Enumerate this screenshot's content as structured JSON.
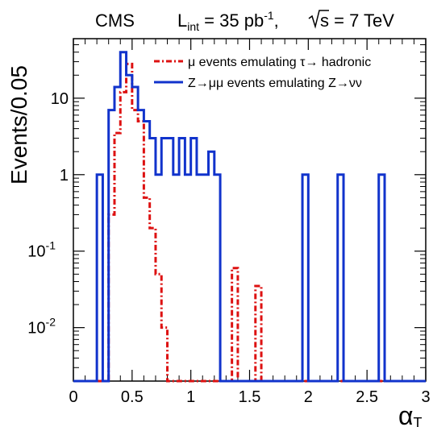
{
  "chart_data": {
    "type": "line",
    "title_parts": {
      "experiment": "CMS",
      "lumi_L": "L",
      "lumi_sub": "int",
      "lumi_value": " = 35 pb",
      "lumi_sup": "-1",
      "comma": ",",
      "sqrt_s_label": "s = 7 TeV"
    },
    "ylabel": "Events/0.05",
    "xlabel": "α",
    "xlabel_sub": "T",
    "xlim": [
      0,
      3
    ],
    "ylim": [
      0.002,
      60
    ],
    "yscale": "log",
    "x_ticks": [
      "0",
      "0.5",
      "1",
      "1.5",
      "2",
      "2.5",
      "3"
    ],
    "x_tick_values": [
      0,
      0.5,
      1,
      1.5,
      2,
      2.5,
      3
    ],
    "y_ticks": [
      {
        "base": "10",
        "exp": "-2",
        "value": 0.01
      },
      {
        "base": "10",
        "exp": "-1",
        "value": 0.1
      },
      {
        "base": "1",
        "exp": "",
        "value": 1
      },
      {
        "base": "10",
        "exp": "",
        "value": 10
      }
    ],
    "legend_position": "top-right",
    "series": [
      {
        "name": "μ events emulating τ→ hadronic",
        "color": "#dd1111",
        "style": "dash-dot",
        "bin_edges": [
          0.3,
          0.35,
          0.4,
          0.45,
          0.5,
          0.55,
          0.6,
          0.65,
          0.7,
          0.75,
          0.8,
          1.35,
          1.4,
          1.45,
          1.55,
          1.6,
          1.65
        ],
        "values": [
          0.3,
          3.5,
          12,
          28,
          7,
          5,
          0.5,
          0.2,
          0.05,
          0.01,
          0,
          0.06,
          0,
          0,
          0.035,
          0
        ]
      },
      {
        "name": "Z→μμ events emulating Z→νν",
        "color": "#1133cc",
        "style": "solid",
        "bin_edges": [
          0.2,
          0.25,
          0.3,
          0.35,
          0.4,
          0.45,
          0.5,
          0.55,
          0.6,
          0.65,
          0.7,
          0.75,
          0.8,
          0.85,
          0.9,
          0.95,
          1.0,
          1.05,
          1.1,
          1.15,
          1.2,
          1.25,
          1.45,
          1.95,
          2.0,
          2.25,
          2.3,
          2.6,
          2.65
        ],
        "values": [
          1,
          0,
          7,
          14,
          40,
          20,
          14,
          7,
          5,
          3,
          1,
          3,
          3,
          1,
          3,
          1,
          3,
          1,
          1,
          2,
          1,
          0,
          0,
          1,
          0,
          1,
          0,
          1
        ]
      }
    ]
  }
}
